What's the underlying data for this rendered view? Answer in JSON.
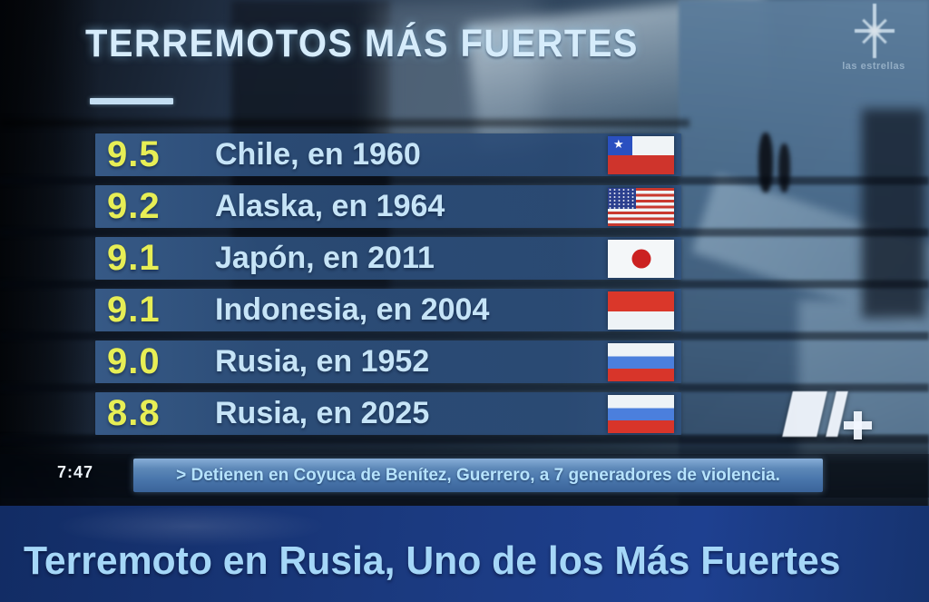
{
  "header": {
    "title": "TERREMOTOS MÁS FUERTES"
  },
  "channel_bug": {
    "name": "las estrellas",
    "icon": "eight-point-star-icon"
  },
  "network_logo": {
    "text": "N+"
  },
  "earthquake_list": {
    "rows": [
      {
        "magnitude": "9.5",
        "label": "Chile, en 1960",
        "flag": "chile"
      },
      {
        "magnitude": "9.2",
        "label": "Alaska, en 1964",
        "flag": "usa"
      },
      {
        "magnitude": "9.1",
        "label": "Japón, en 2011",
        "flag": "japan"
      },
      {
        "magnitude": "9.1",
        "label": "Indonesia, en 2004",
        "flag": "indonesia"
      },
      {
        "magnitude": "9.0",
        "label": "Rusia, en 1952",
        "flag": "russia"
      },
      {
        "magnitude": "8.8",
        "label": "Rusia, en 2025",
        "flag": "russia"
      }
    ]
  },
  "ticker": {
    "time": "7:47",
    "text": "> Detienen en Coyuca de Benítez, Guerrero, a 7 generadores de violencia."
  },
  "headline": {
    "text": "Terremoto en Rusia, Uno de los Más Fuertes"
  },
  "colors": {
    "magnitude_yellow": "#e7ee55",
    "row_bar_blue": "#2b4e7a",
    "list_text_blue": "#c6e4f7",
    "ticker_band_blue": "#4a77ac",
    "headline_bg": "#1b3a80",
    "headline_text": "#a5d7f8"
  }
}
